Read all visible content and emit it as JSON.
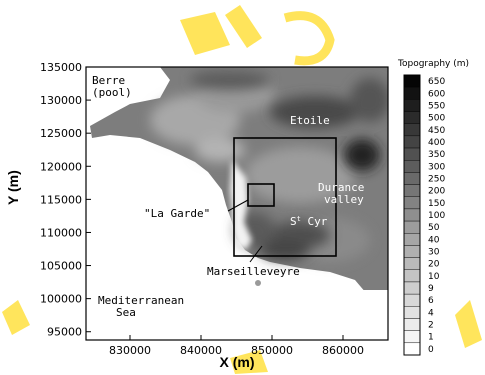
{
  "map": {
    "x_axis_label": "X (m)",
    "y_axis_label": "Y (m)",
    "x_ticks": [
      "830000",
      "840000",
      "850000",
      "860000"
    ],
    "y_ticks": [
      "135000",
      "130000",
      "125000",
      "120000",
      "115000",
      "110000",
      "105000",
      "100000",
      "95000"
    ],
    "place_labels": {
      "berre": "Berre\n(pool)",
      "etoile": "Etoile",
      "durance": "Durance\nvalley",
      "la_garde": "\"La Garde\"",
      "st_cyr": "St Cyr",
      "marseilleveyre": "Marseilleveyre",
      "mediterranean": "Mediterranean\nSea"
    }
  },
  "legend": {
    "title": "Topography (m)",
    "levels": [
      "650",
      "600",
      "550",
      "500",
      "450",
      "400",
      "350",
      "300",
      "250",
      "200",
      "150",
      "100",
      "50",
      "40",
      "30",
      "20",
      "10",
      "9",
      "6",
      "4",
      "2",
      "1",
      "0"
    ],
    "colors": [
      "#050505",
      "#121212",
      "#1e1e1e",
      "#2b2b2b",
      "#383838",
      "#444444",
      "#515151",
      "#5d5d5d",
      "#6a6a6a",
      "#767676",
      "#838383",
      "#8f8f8f",
      "#9c9c9c",
      "#a6a6a6",
      "#b0b0b0",
      "#bababa",
      "#c4c4c4",
      "#cecece",
      "#d8d8d8",
      "#e2e2e2",
      "#ececec",
      "#f5f5f5",
      "#ffffff"
    ]
  },
  "watermark_color": "#ffe24a"
}
